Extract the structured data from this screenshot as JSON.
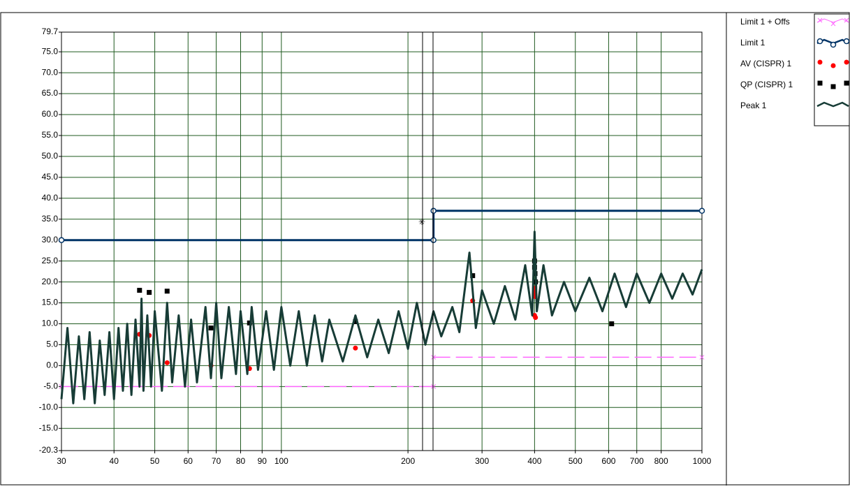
{
  "chart_data": {
    "type": "line",
    "xscale": "log",
    "grid": true,
    "grid_color": "#1f5a1f",
    "xlim": [
      30,
      1000
    ],
    "ylim": [
      -20.3,
      79.7
    ],
    "xticks": [
      30,
      40,
      50,
      60,
      70,
      80,
      90,
      100,
      200,
      300,
      400,
      500,
      600,
      700,
      800,
      1000
    ],
    "yticks": [
      79.7,
      {
        "value": 75,
        "label": "75.0"
      },
      {
        "value": 70,
        "label": "70.0"
      },
      {
        "value": 65,
        "label": "65.0"
      },
      {
        "value": 60,
        "label": "60.0"
      },
      {
        "value": 55,
        "label": "55.0"
      },
      {
        "value": 50,
        "label": "50.0"
      },
      {
        "value": 45,
        "label": "45.0"
      },
      {
        "value": 40,
        "label": "40.0"
      },
      {
        "value": 35,
        "label": "35.0"
      },
      {
        "value": 30,
        "label": "30.0"
      },
      {
        "value": 25,
        "label": "25.0"
      },
      {
        "value": 20,
        "label": "20.0"
      },
      {
        "value": 15,
        "label": "15.0"
      },
      {
        "value": 10,
        "label": "10.0"
      },
      {
        "value": 5,
        "label": "5.0"
      },
      {
        "value": 0,
        "label": "0.0"
      },
      {
        "value": -5,
        "label": "-5.0"
      },
      {
        "value": -10,
        "label": "-10.0"
      },
      {
        "value": -15,
        "label": "-15.0"
      },
      -20.3
    ],
    "series": [
      {
        "name": "Limit 1 + Offs",
        "color": "#ff66ff",
        "line": "dashed",
        "marker": "x",
        "x": [
          30,
          230,
          230,
          230,
          1000
        ],
        "values": [
          -5,
          -5,
          null,
          2,
          2
        ]
      },
      {
        "name": "Limit 1",
        "color": "#003366",
        "line": "solid",
        "marker": "circle",
        "x": [
          30,
          230,
          230,
          1000
        ],
        "values": [
          30,
          30,
          37,
          37
        ]
      },
      {
        "name": "AV (CISPR) 1",
        "color": "#ff0000",
        "line": "none",
        "marker": "dot",
        "x": [
          46,
          48.5,
          53.5,
          68,
          84,
          150,
          285,
          400,
          400,
          401,
          400,
          402,
          610
        ],
        "values": [
          7.5,
          7.2,
          0.7,
          0,
          -0.7,
          4.2,
          15.5,
          18.5,
          17.5,
          16.5,
          12,
          11.5,
          10
        ]
      },
      {
        "name": "QP (CISPR) 1",
        "color": "#000000",
        "line": "none",
        "marker": "square",
        "x": [
          46,
          48.5,
          53.5,
          68,
          84,
          150,
          285,
          400,
          400,
          401,
          402,
          610
        ],
        "values": [
          18,
          17.5,
          17.8,
          9,
          10.2,
          10.5,
          21.5,
          25,
          23.5,
          22,
          20,
          10
        ]
      },
      {
        "name": "Peak 1",
        "color": "#173c36",
        "line": "solid",
        "marker": "none",
        "x": [
          30,
          31,
          32,
          33,
          34,
          35,
          36,
          37,
          38,
          39,
          40,
          41,
          42,
          43,
          44,
          45,
          46,
          46.5,
          47,
          48,
          49,
          50,
          52,
          53.5,
          55,
          57,
          59,
          61,
          63,
          66,
          68,
          70,
          72,
          75,
          78,
          80,
          83,
          85,
          88,
          92,
          96,
          100,
          105,
          110,
          115,
          120,
          125,
          130,
          140,
          150,
          160,
          170,
          180,
          190,
          200,
          210,
          220,
          230,
          240,
          255,
          265,
          280,
          290,
          300,
          320,
          340,
          360,
          380,
          395,
          400,
          405,
          420,
          440,
          470,
          500,
          540,
          580,
          620,
          660,
          700,
          750,
          800,
          850,
          900,
          950,
          1000
        ],
        "values": [
          -8,
          9,
          -9,
          7,
          -8,
          8,
          -9,
          6,
          -7,
          8,
          -8,
          9,
          -6,
          10,
          -7,
          11,
          -5,
          16,
          -6,
          12,
          -5,
          13,
          -6,
          15,
          -4,
          12,
          -5,
          11,
          -4,
          14,
          -3,
          15,
          -3,
          14,
          -2,
          13,
          -2,
          14,
          -1,
          13,
          -1,
          14,
          0,
          13,
          0,
          12,
          1,
          11,
          1,
          12,
          2,
          11,
          3,
          13,
          4,
          15,
          5,
          13,
          7,
          14,
          8,
          27,
          9,
          18,
          10,
          19,
          11,
          24,
          12,
          32,
          13,
          24,
          12,
          20,
          13,
          21,
          13,
          22,
          14,
          22,
          15,
          22,
          16,
          22,
          17,
          23
        ]
      }
    ]
  }
}
